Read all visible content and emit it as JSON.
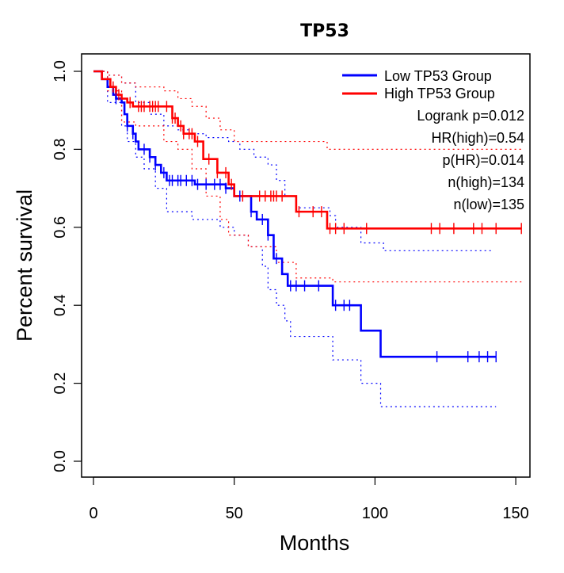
{
  "chart_data": {
    "type": "line",
    "title": "TP53",
    "xlabel": "Months",
    "ylabel": "Percent survival",
    "xlim": [
      0,
      155
    ],
    "ylim": [
      0,
      1.05
    ],
    "x_ticks": [
      "0",
      "50",
      "100",
      "150"
    ],
    "y_ticks": [
      "0.0",
      "0.2",
      "0.4",
      "0.6",
      "0.8",
      "1.0"
    ],
    "colors": {
      "low": "#0000ff",
      "high": "#ff0000"
    },
    "series": [
      {
        "name": "Low TP53 Group",
        "color": "#0000ff",
        "steps": [
          [
            0,
            1.0
          ],
          [
            3,
            0.98
          ],
          [
            5,
            0.96
          ],
          [
            7,
            0.94
          ],
          [
            8,
            0.93
          ],
          [
            10,
            0.92
          ],
          [
            11,
            0.89
          ],
          [
            12,
            0.86
          ],
          [
            14,
            0.84
          ],
          [
            15,
            0.82
          ],
          [
            16,
            0.8
          ],
          [
            20,
            0.78
          ],
          [
            22,
            0.76
          ],
          [
            24,
            0.74
          ],
          [
            26,
            0.72
          ],
          [
            36,
            0.71
          ],
          [
            47,
            0.7
          ],
          [
            50,
            0.68
          ],
          [
            56,
            0.64
          ],
          [
            58,
            0.62
          ],
          [
            62,
            0.58
          ],
          [
            64,
            0.52
          ],
          [
            67,
            0.48
          ],
          [
            69,
            0.45
          ],
          [
            85,
            0.4
          ],
          [
            95,
            0.335
          ],
          [
            102,
            0.268
          ],
          [
            143,
            0.268
          ]
        ],
        "censor_x": [
          8,
          12,
          14,
          18,
          20,
          22,
          25,
          27,
          28,
          30,
          31,
          33,
          35,
          37,
          40,
          43,
          45,
          47,
          52,
          56,
          60,
          62,
          65,
          70,
          72,
          75,
          80,
          86,
          89,
          91,
          122,
          133,
          137,
          140,
          143
        ],
        "ci_upper": [
          [
            0,
            1.0
          ],
          [
            5,
            0.99
          ],
          [
            10,
            0.97
          ],
          [
            15,
            0.92
          ],
          [
            20,
            0.89
          ],
          [
            25,
            0.86
          ],
          [
            30,
            0.85
          ],
          [
            35,
            0.84
          ],
          [
            40,
            0.83
          ],
          [
            48,
            0.82
          ],
          [
            52,
            0.8
          ],
          [
            57,
            0.78
          ],
          [
            62,
            0.76
          ],
          [
            65,
            0.72
          ],
          [
            68,
            0.68
          ],
          [
            72,
            0.65
          ],
          [
            84,
            0.63
          ],
          [
            86,
            0.6
          ],
          [
            95,
            0.56
          ],
          [
            103,
            0.54
          ],
          [
            142,
            0.54
          ]
        ],
        "ci_lower": [
          [
            0,
            1.0
          ],
          [
            5,
            0.92
          ],
          [
            10,
            0.86
          ],
          [
            12,
            0.82
          ],
          [
            15,
            0.78
          ],
          [
            18,
            0.75
          ],
          [
            22,
            0.7
          ],
          [
            26,
            0.64
          ],
          [
            35,
            0.62
          ],
          [
            45,
            0.6
          ],
          [
            50,
            0.58
          ],
          [
            55,
            0.55
          ],
          [
            60,
            0.5
          ],
          [
            62,
            0.44
          ],
          [
            65,
            0.4
          ],
          [
            68,
            0.36
          ],
          [
            70,
            0.32
          ],
          [
            85,
            0.26
          ],
          [
            95,
            0.2
          ],
          [
            102,
            0.14
          ],
          [
            143,
            0.14
          ]
        ]
      },
      {
        "name": "High TP53 Group",
        "color": "#ff0000",
        "steps": [
          [
            0,
            1.0
          ],
          [
            3,
            0.98
          ],
          [
            6,
            0.96
          ],
          [
            8,
            0.94
          ],
          [
            10,
            0.93
          ],
          [
            12,
            0.92
          ],
          [
            14,
            0.91
          ],
          [
            28,
            0.88
          ],
          [
            30,
            0.86
          ],
          [
            32,
            0.84
          ],
          [
            36,
            0.82
          ],
          [
            39,
            0.775
          ],
          [
            44,
            0.74
          ],
          [
            48,
            0.71
          ],
          [
            50,
            0.68
          ],
          [
            72,
            0.64
          ],
          [
            83,
            0.597
          ],
          [
            152,
            0.597
          ]
        ],
        "censor_x": [
          7,
          9,
          13,
          16,
          17,
          18,
          20,
          21,
          22,
          23,
          26,
          28,
          29,
          31,
          32,
          34,
          35,
          37,
          41,
          44,
          47,
          49,
          53,
          59,
          61,
          63,
          64,
          65,
          67,
          73,
          78,
          81,
          84,
          86,
          89,
          97,
          120,
          123,
          128,
          135,
          138,
          143,
          152
        ],
        "ci_upper": [
          [
            0,
            1.0
          ],
          [
            5,
            0.99
          ],
          [
            10,
            0.97
          ],
          [
            15,
            0.96
          ],
          [
            25,
            0.95
          ],
          [
            30,
            0.93
          ],
          [
            35,
            0.91
          ],
          [
            40,
            0.88
          ],
          [
            45,
            0.85
          ],
          [
            50,
            0.82
          ],
          [
            72,
            0.82
          ],
          [
            83,
            0.8
          ],
          [
            152,
            0.8
          ]
        ],
        "ci_lower": [
          [
            0,
            1.0
          ],
          [
            5,
            0.95
          ],
          [
            10,
            0.87
          ],
          [
            15,
            0.86
          ],
          [
            25,
            0.82
          ],
          [
            30,
            0.8
          ],
          [
            35,
            0.75
          ],
          [
            40,
            0.68
          ],
          [
            45,
            0.62
          ],
          [
            48,
            0.58
          ],
          [
            55,
            0.55
          ],
          [
            65,
            0.51
          ],
          [
            72,
            0.47
          ],
          [
            83,
            0.47
          ],
          [
            85,
            0.46
          ],
          [
            152,
            0.46
          ]
        ]
      }
    ],
    "legend": {
      "position": "top-right",
      "entries": [
        "Low TP53 Group",
        "High TP53 Group"
      ],
      "stats": [
        "Logrank p=0.012",
        "HR(high)=0.54",
        "p(HR)=0.014",
        "n(high)=134",
        "n(low)=135"
      ]
    }
  }
}
